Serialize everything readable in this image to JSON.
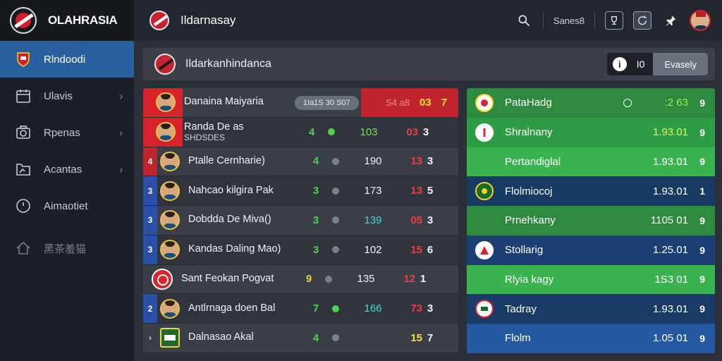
{
  "app": {
    "brand": "OLAHRASIA",
    "title": "Ildarnasay"
  },
  "colors": {
    "accent": "#2a5f9e",
    "red": "#c0242c",
    "green": "#2e8a3e",
    "navy": "#1c3f73"
  },
  "sidebar": {
    "items": [
      {
        "label": "Rlndoodi",
        "icon": "club-crest-icon",
        "active": true
      },
      {
        "label": "Ulavis",
        "icon": "calendar-icon"
      },
      {
        "label": "Rpenas",
        "icon": "camera-icon"
      },
      {
        "label": "Acantas",
        "icon": "folder-icon"
      },
      {
        "label": "Aimaotiet",
        "icon": "clock-icon"
      },
      {
        "label": "黑茶羞猫",
        "icon": "home-icon"
      }
    ]
  },
  "topbar": {
    "search_label": "Sanes8",
    "icons": [
      "search-icon",
      "trophy-icon",
      "refresh-icon",
      "pin-icon"
    ]
  },
  "header": {
    "title": "Ildarkanhindanca",
    "count": "I0",
    "button": "Evasely"
  },
  "left_table": {
    "header": {
      "name": "Danaina Maiyaria",
      "badge": "1Ia1S 30 S07",
      "v1": "S4 a8",
      "v2": "03",
      "v3": "7"
    },
    "rows": [
      {
        "rank": "",
        "name": "Randa De as",
        "sub": "SHDSDES",
        "num": "4",
        "pts": "103",
        "red": "03",
        "last": "3",
        "num_color": "#4fd24f",
        "pts_color": "#7be04a"
      },
      {
        "rank": "4",
        "name": "Ptalle Cernharie)",
        "num": "4",
        "pts": "190",
        "red": "13",
        "last": "3",
        "num_color": "#4fd24f",
        "pts_color": "#f1f3f6"
      },
      {
        "rank": "3",
        "name": "Nahcao kilgira Pak",
        "num": "3",
        "pts": "173",
        "red": "13",
        "last": "5",
        "num_color": "#4fd24f",
        "pts_color": "#f1f3f6"
      },
      {
        "rank": "3",
        "name": "Dobdda De Miva()",
        "num": "3",
        "pts": "139",
        "red": "05",
        "last": "3",
        "num_color": "#4fd24f",
        "pts_color": "#49d9d0"
      },
      {
        "rank": "3",
        "name": "Kandas Daling Mao)",
        "num": "3",
        "pts": "102",
        "red": "15",
        "last": "6",
        "num_color": "#4fd24f",
        "pts_color": "#f1f3f6"
      },
      {
        "rank": "",
        "name": "Sant Feokan Pogvat",
        "num": "9",
        "pts": "135",
        "red": "12",
        "last": "1",
        "num_color": "#e6d23a",
        "pts_color": "#f1f3f6"
      },
      {
        "rank": "2",
        "name": "Antlrnaga doen Bal",
        "num": "7",
        "pts": "166",
        "red": "73",
        "last": "3",
        "num_color": "#4fd24f",
        "pts_color": "#49d9d0"
      },
      {
        "rank": "",
        "name": "Dalnasao Akal",
        "num": "4",
        "pts": "",
        "red": "15",
        "last": "7",
        "num_color": "#4fd24f",
        "pts_color": "#f1f3f6"
      }
    ]
  },
  "right_table": {
    "rows": [
      {
        "name": "PataHadg",
        "value": ":2 63",
        "tail": "9",
        "bg": "#2e8a3e",
        "logo": true,
        "mark": true,
        "value_color": "#9ef05a"
      },
      {
        "name": "Shralnany",
        "value": "1.93.01",
        "tail": "9",
        "bg": "#2f9d45",
        "logo": true,
        "value_color": "#e6f55a"
      },
      {
        "name": "Pertandiglal",
        "value": "1.93.01",
        "tail": "9",
        "bg": "#39b24f",
        "logo": false,
        "value_color": "#ffffff"
      },
      {
        "name": "Flolmiocoj",
        "value": "1.93.01",
        "tail": "1",
        "bg": "#173a62",
        "logo": true,
        "value_color": "#ffffff"
      },
      {
        "name": "Prnehkany",
        "value": "1105 01",
        "tail": "9",
        "bg": "#2e8a3e",
        "logo": false,
        "value_color": "#ffffff"
      },
      {
        "name": "Stollarig",
        "value": "1.25.01",
        "tail": "9",
        "bg": "#1c3f73",
        "logo": true,
        "value_color": "#ffffff"
      },
      {
        "name": "Rlyia kagy",
        "value": "1S3 01",
        "tail": "9",
        "bg": "#39b24f",
        "logo": false,
        "value_color": "#ffffff"
      },
      {
        "name": "Tadray",
        "value": "1.93.01",
        "tail": "9",
        "bg": "#183b66",
        "logo": true,
        "value_color": "#ffffff"
      },
      {
        "name": "Flolm",
        "value": "1.05 01",
        "tail": "9",
        "bg": "#2458a0",
        "logo": false,
        "value_color": "#ffffff"
      }
    ]
  }
}
